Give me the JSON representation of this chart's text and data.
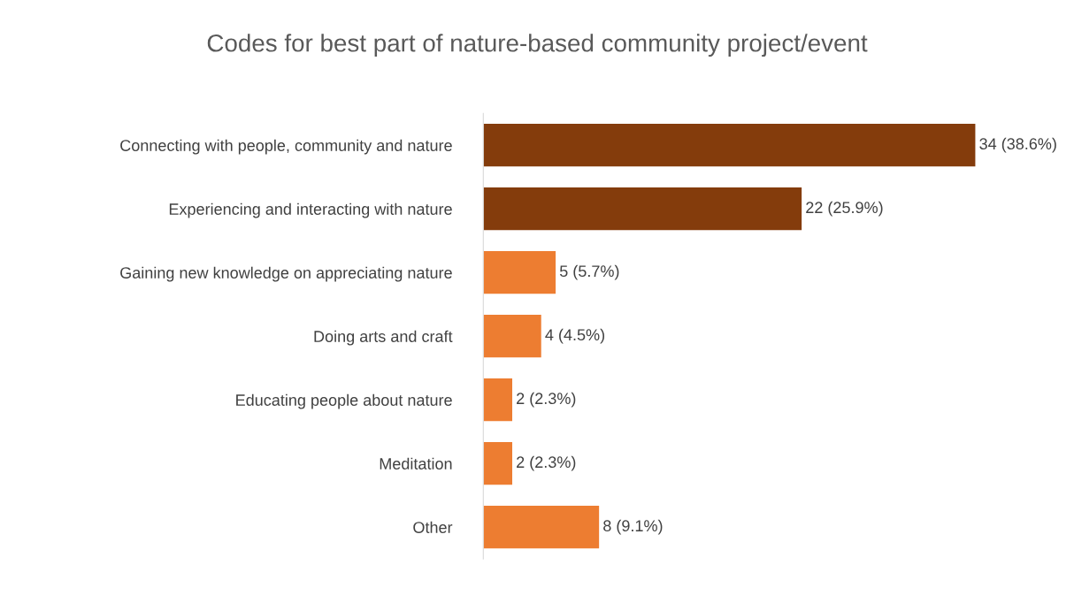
{
  "chart_data": {
    "type": "bar",
    "orientation": "horizontal",
    "title": "Codes for best part of nature-based community project/event",
    "categories": [
      "Connecting with people, community and nature",
      "Experiencing and interacting with nature",
      "Gaining new knowledge on appreciating nature",
      "Doing arts and craft",
      "Educating people about nature",
      "Meditation",
      "Other"
    ],
    "values": [
      34,
      22,
      5,
      4,
      2,
      2,
      8
    ],
    "colors": [
      "#843c0c",
      "#843c0c",
      "#ed7d31",
      "#ed7d31",
      "#ed7d31",
      "#ed7d31",
      "#ed7d31"
    ],
    "value_labels": [
      "34 (38.6%)",
      "22 (25.9%)",
      "5 (5.7%)",
      "4 (4.5%)",
      "2 (2.3%)",
      "2 (2.3%)",
      "8 (9.1%)"
    ],
    "tick_labels": "y",
    "grid": false,
    "legend": false
  }
}
